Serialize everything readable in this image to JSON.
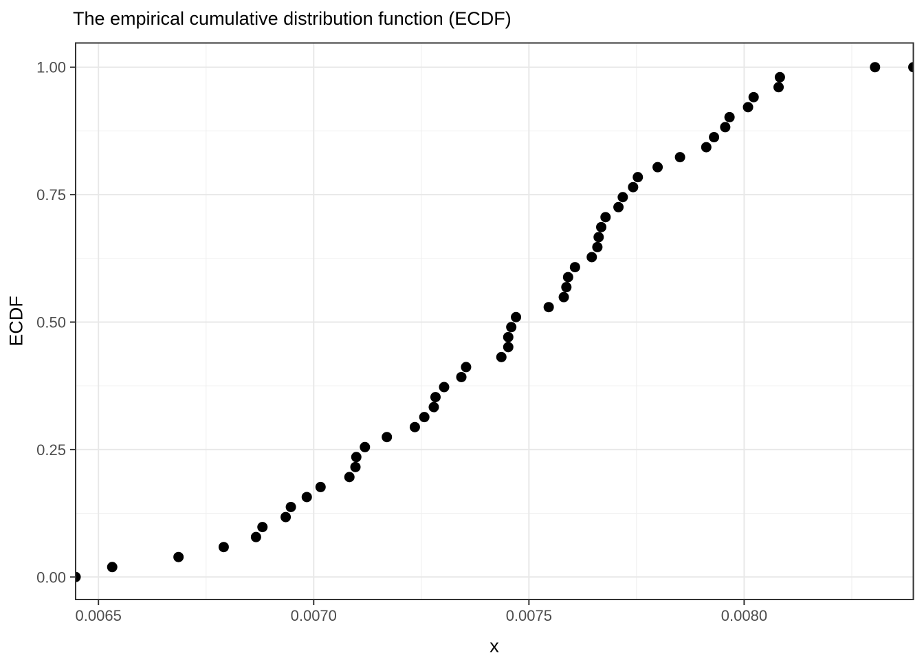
{
  "chart_data": {
    "type": "scatter",
    "title": "The empirical cumulative distribution function (ECDF)",
    "xlabel": "x",
    "ylabel": "ECDF",
    "legend_position": "none",
    "grid": true,
    "x_ticks": {
      "values": [
        0.0065,
        0.007,
        0.0075,
        0.008
      ],
      "labels": [
        "0.0065",
        "0.0070",
        "0.0075",
        "0.0080"
      ]
    },
    "y_ticks": {
      "values": [
        0.0,
        0.25,
        0.5,
        0.75,
        1.0
      ],
      "labels": [
        "0.00",
        "0.25",
        "0.50",
        "0.75",
        "1.00"
      ]
    },
    "x_minor_ticks": [
      0.00675,
      0.00725,
      0.00775,
      0.00825
    ],
    "y_minor_ticks": [
      0.125,
      0.375,
      0.625,
      0.875
    ],
    "xlim": [
      0.006447,
      0.008393
    ],
    "ylim": [
      -0.0441,
      1.0475
    ],
    "series": [
      {
        "name": "ecdf-points",
        "marker": "filled-circle",
        "color": "#000000",
        "point_radius": 7.5,
        "points": [
          [
            0.006447,
            0.0
          ],
          [
            0.006532,
            0.0196
          ],
          [
            0.006686,
            0.0392
          ],
          [
            0.006791,
            0.0588
          ],
          [
            0.006866,
            0.0784
          ],
          [
            0.006881,
            0.098
          ],
          [
            0.006935,
            0.1176
          ],
          [
            0.006947,
            0.1373
          ],
          [
            0.006984,
            0.1569
          ],
          [
            0.007016,
            0.1765
          ],
          [
            0.007083,
            0.1961
          ],
          [
            0.007097,
            0.2157
          ],
          [
            0.007099,
            0.2353
          ],
          [
            0.007119,
            0.2549
          ],
          [
            0.00717,
            0.2745
          ],
          [
            0.007235,
            0.2941
          ],
          [
            0.007257,
            0.3137
          ],
          [
            0.007279,
            0.3333
          ],
          [
            0.007283,
            0.3529
          ],
          [
            0.007303,
            0.3725
          ],
          [
            0.007343,
            0.3922
          ],
          [
            0.007354,
            0.4118
          ],
          [
            0.007436,
            0.4314
          ],
          [
            0.007452,
            0.451
          ],
          [
            0.007452,
            0.4706
          ],
          [
            0.007459,
            0.4902
          ],
          [
            0.00747,
            0.5098
          ],
          [
            0.007546,
            0.5294
          ],
          [
            0.007581,
            0.549
          ],
          [
            0.007587,
            0.5686
          ],
          [
            0.007591,
            0.5882
          ],
          [
            0.007607,
            0.6078
          ],
          [
            0.007646,
            0.6275
          ],
          [
            0.007659,
            0.6471
          ],
          [
            0.007662,
            0.6667
          ],
          [
            0.007668,
            0.6863
          ],
          [
            0.007678,
            0.7059
          ],
          [
            0.007708,
            0.7255
          ],
          [
            0.007718,
            0.7451
          ],
          [
            0.007742,
            0.7647
          ],
          [
            0.007753,
            0.7843
          ],
          [
            0.007799,
            0.8039
          ],
          [
            0.007851,
            0.8235
          ],
          [
            0.007912,
            0.8431
          ],
          [
            0.00793,
            0.8627
          ],
          [
            0.007956,
            0.8824
          ],
          [
            0.007966,
            0.902
          ],
          [
            0.008009,
            0.9216
          ],
          [
            0.008022,
            0.9412
          ],
          [
            0.00808,
            0.9608
          ],
          [
            0.008083,
            0.9804
          ],
          [
            0.008304,
            1.0
          ],
          [
            0.008393,
            1.0
          ]
        ]
      }
    ],
    "colors": {
      "point": "#000000",
      "grid_major": "#e8e8e8",
      "grid_minor": "#f0f0f0",
      "panel_border": "#333333",
      "tick_mark": "#333333",
      "tick_label": "#4d4d4d",
      "title_text": "#000000",
      "background": "#ffffff"
    }
  }
}
